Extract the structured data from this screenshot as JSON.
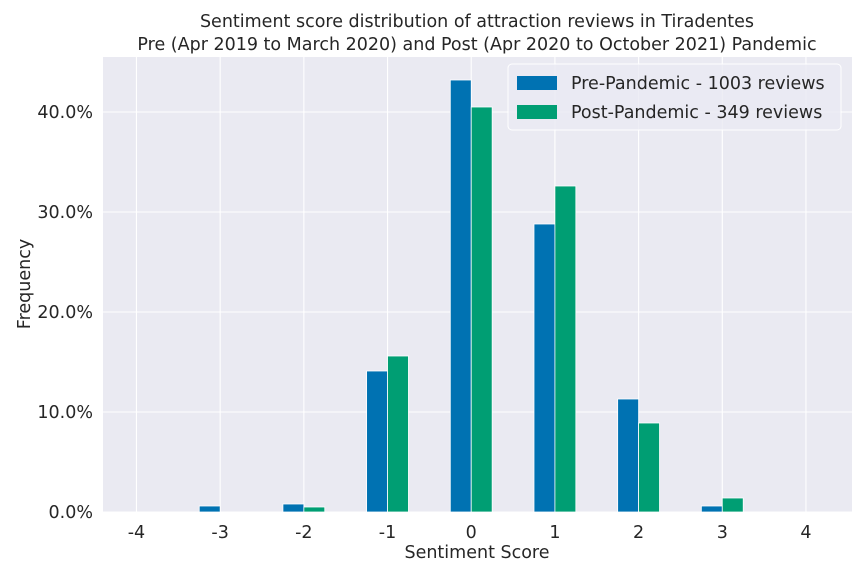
{
  "chart_data": {
    "type": "bar",
    "title_line1": "Sentiment score distribution of attraction reviews in Tiradentes",
    "title_line2": "Pre (Apr 2019 to March 2020) and Post (Apr 2020 to October 2021) Pandemic",
    "xlabel": "Sentiment Score",
    "ylabel": "Frequency",
    "categories": [
      "-4",
      "-3",
      "-2",
      "-1",
      "0",
      "1",
      "2",
      "3",
      "4"
    ],
    "x_values": [
      -4,
      -3,
      -2,
      -1,
      0,
      1,
      2,
      3,
      4
    ],
    "y_ticks": [
      "0.0%",
      "10.0%",
      "20.0%",
      "30.0%",
      "40.0%"
    ],
    "ylim": [
      0,
      45.5
    ],
    "xlim": [
      -4.4,
      4.55
    ],
    "grid": true,
    "legend_position": "top-right",
    "series": [
      {
        "name": "Pre-Pandemic - 1003 reviews",
        "color": "#0072b2",
        "values": [
          0,
          0.6,
          0.8,
          14.1,
          43.2,
          28.8,
          11.3,
          0.6,
          0
        ]
      },
      {
        "name": "Post-Pandemic - 349 reviews",
        "color": "#009e73",
        "values": [
          0,
          0,
          0.5,
          15.6,
          40.5,
          32.6,
          8.9,
          1.4,
          0
        ]
      }
    ]
  }
}
